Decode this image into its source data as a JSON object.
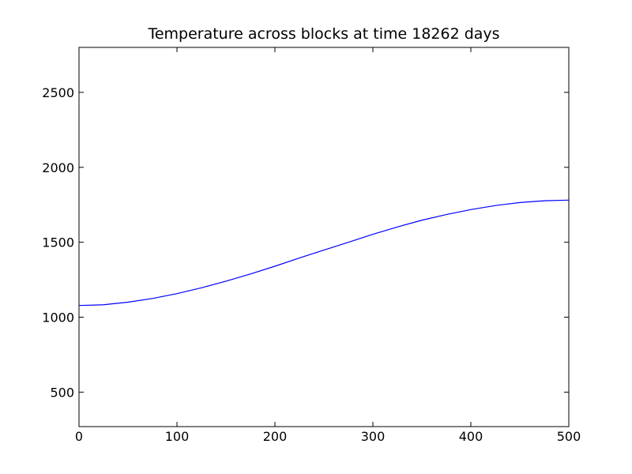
{
  "chart_data": {
    "type": "line",
    "title": "Temperature across blocks at time 18262 days",
    "xlabel": "",
    "ylabel": "",
    "xlim": [
      0,
      500
    ],
    "ylim": [
      270,
      2800
    ],
    "xticks": [
      0,
      100,
      200,
      300,
      400,
      500
    ],
    "yticks": [
      500,
      1000,
      1500,
      2000,
      2500
    ],
    "grid": false,
    "series": [
      {
        "color": "#0000ff",
        "x": [
          0,
          25,
          50,
          75,
          100,
          125,
          150,
          175,
          200,
          225,
          250,
          275,
          300,
          325,
          350,
          375,
          400,
          425,
          450,
          475,
          500
        ],
        "y": [
          1078,
          1083,
          1100,
          1125,
          1157,
          1196,
          1240,
          1288,
          1340,
          1395,
          1448,
          1500,
          1553,
          1602,
          1647,
          1685,
          1718,
          1745,
          1765,
          1777,
          1781
        ]
      }
    ]
  }
}
